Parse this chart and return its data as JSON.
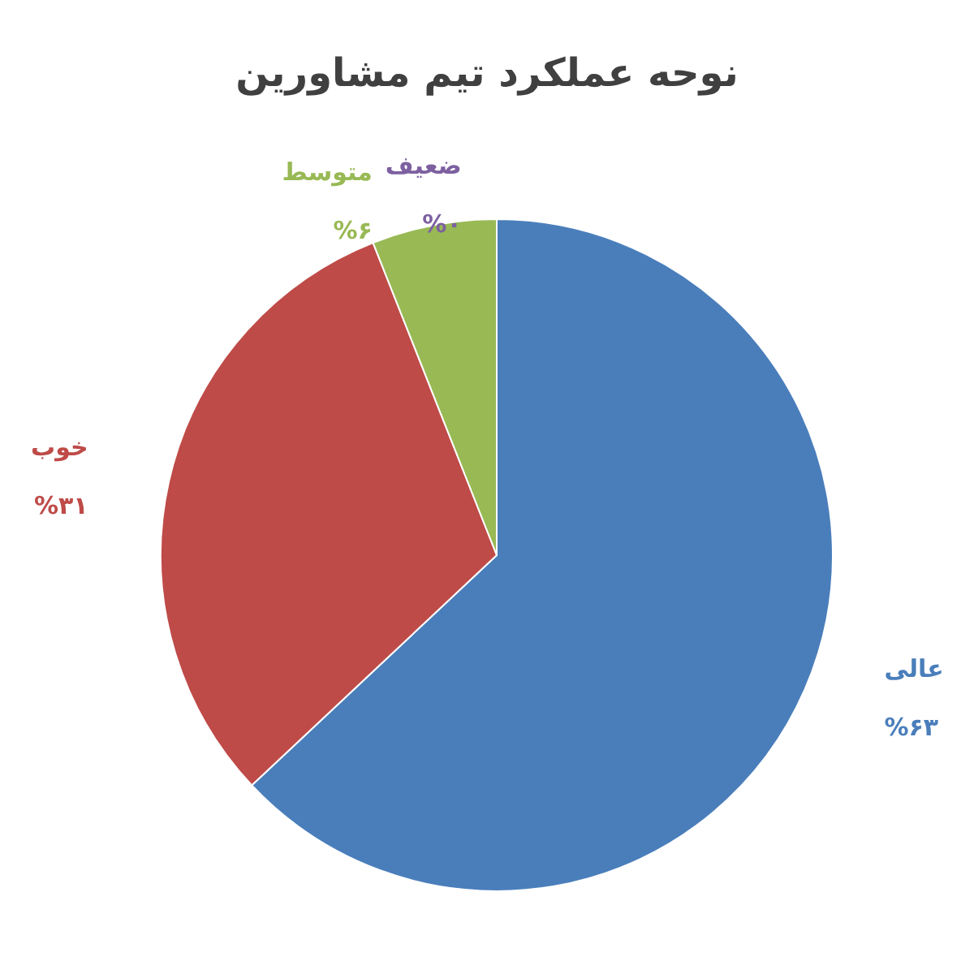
{
  "chart_data": {
    "type": "pie",
    "title": "نوحه عملکرد تیم مشاورین",
    "categories": [
      "عالی",
      "خوب",
      "متوسط",
      "ضعیف"
    ],
    "values": [
      63,
      31,
      6,
      0
    ],
    "colors": [
      "#4a7ebb",
      "#be4b48",
      "#98b954",
      "#7d60a0"
    ],
    "value_labels": [
      "%۶۳",
      "%۳۱",
      "%۶",
      "%۰"
    ],
    "legend": false
  }
}
